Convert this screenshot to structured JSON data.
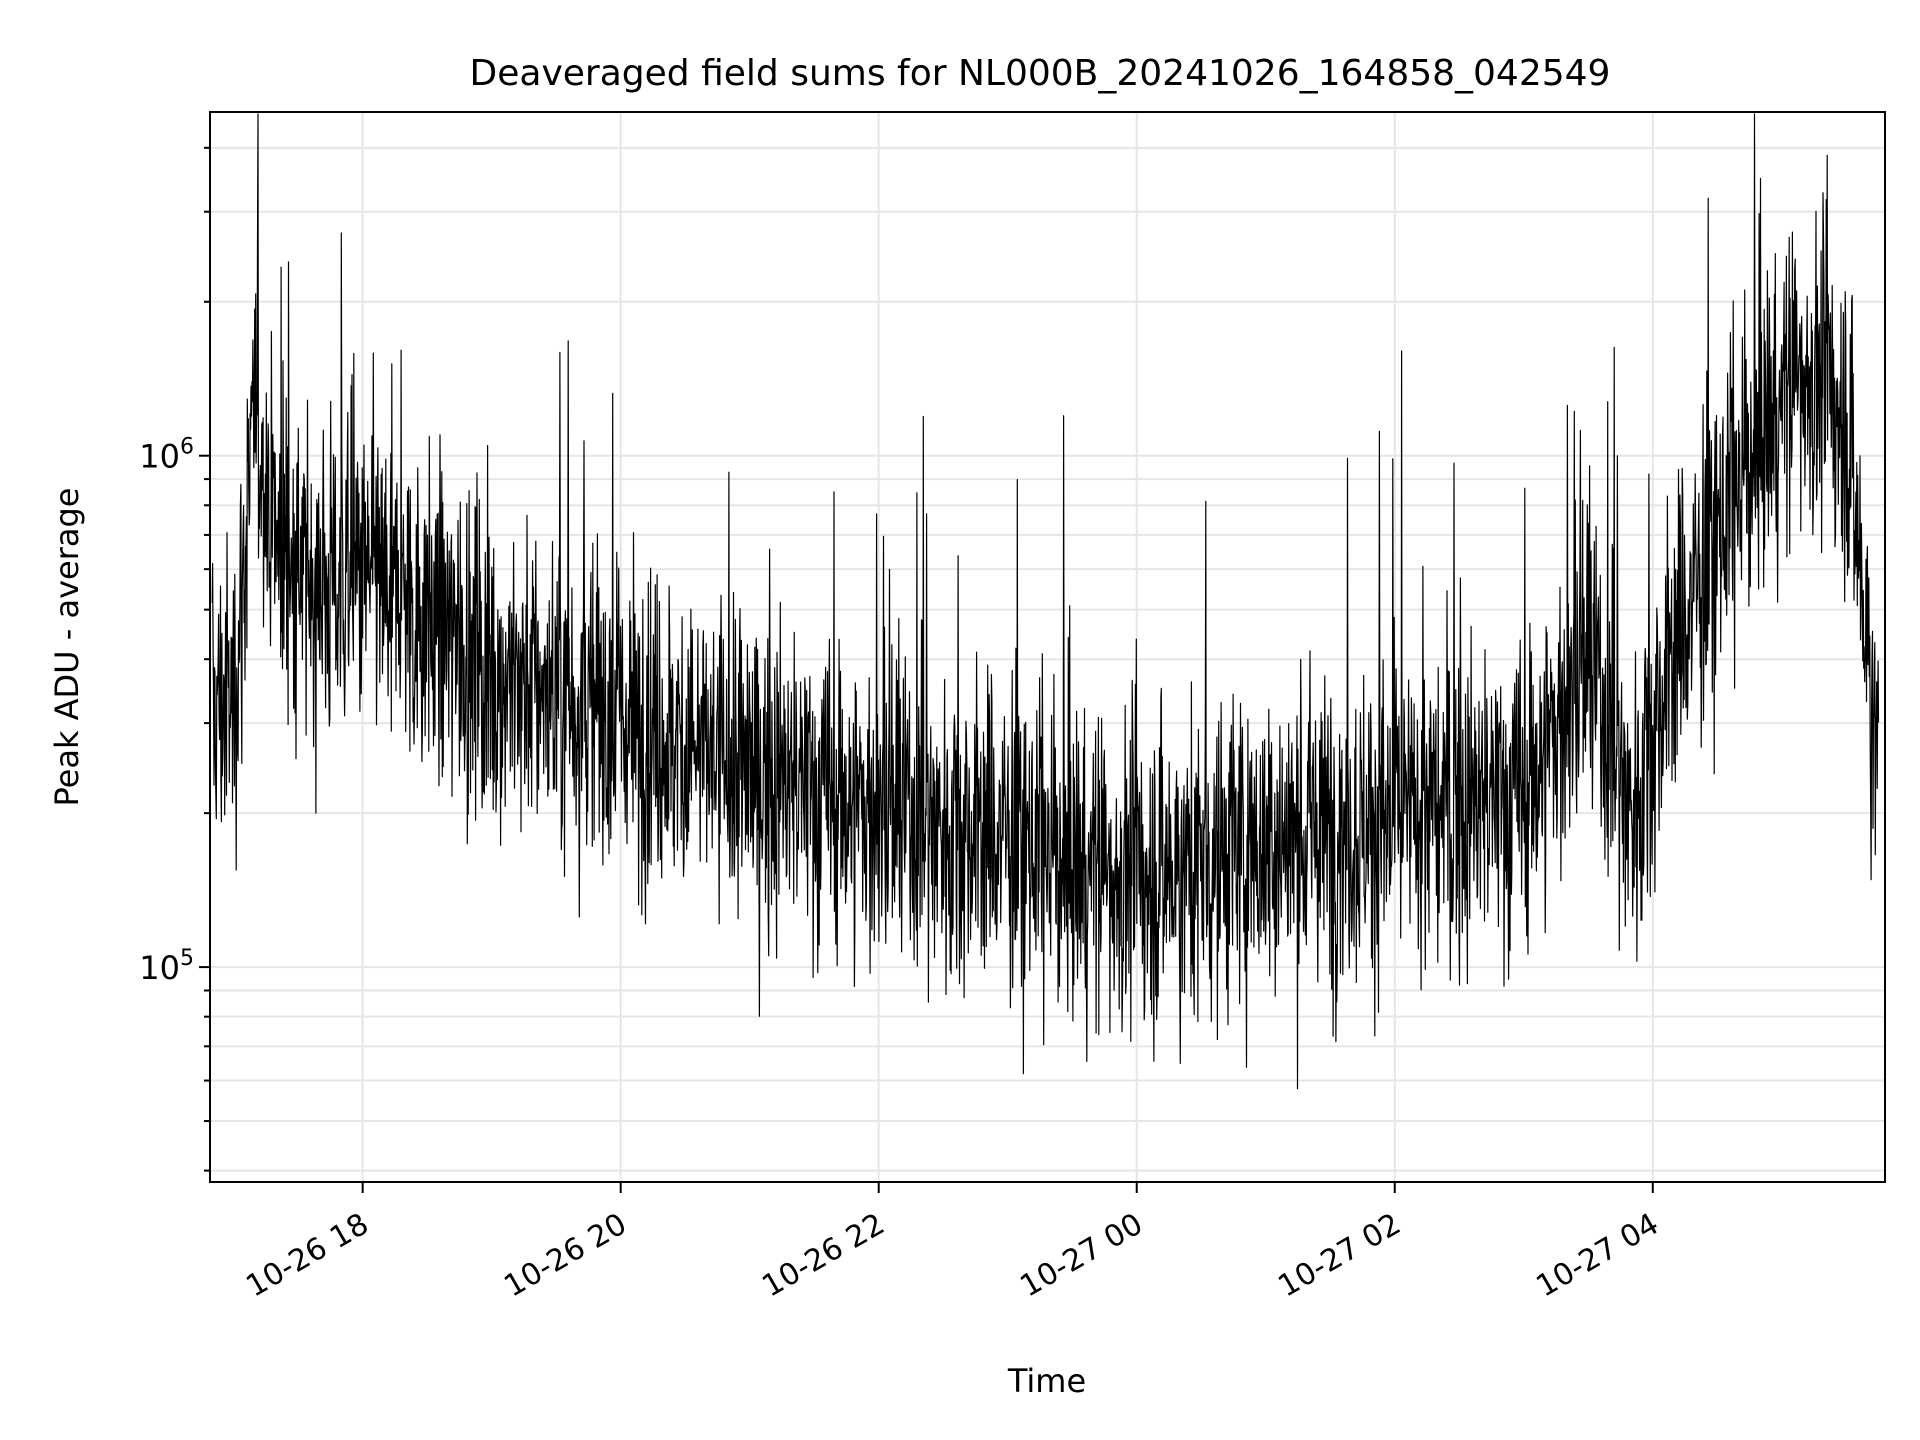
{
  "chart_data": {
    "type": "line",
    "title": "Deaveraged field sums for NL000B_20241026_164858_042549",
    "xlabel": "Time",
    "ylabel": "Peak ADU - average",
    "x_ticks": [
      "10-26 18",
      "10-26 20",
      "10-26 22",
      "10-27 00",
      "10-27 02",
      "10-27 04"
    ],
    "y_ticks": [
      {
        "base": "10",
        "exp": "5",
        "value": 100000
      },
      {
        "base": "10",
        "exp": "6",
        "value": 1000000
      }
    ],
    "y_scale": "log",
    "xlim": [
      "2024-10-26 16:49",
      "2024-10-27 05:48"
    ],
    "ylim": [
      38000,
      4700000
    ],
    "grid": true,
    "line_color": "#000000",
    "series": [
      {
        "x": [
          "2024-10-26 16:50",
          "2024-10-26 17:00",
          "2024-10-26 17:10",
          "2024-10-26 17:20",
          "2024-10-26 17:30",
          "2024-10-26 17:45",
          "2024-10-26 18:00",
          "2024-10-26 18:20",
          "2024-10-26 18:40",
          "2024-10-26 19:00",
          "2024-10-26 19:30",
          "2024-10-26 20:00",
          "2024-10-26 20:30",
          "2024-10-26 21:00",
          "2024-10-26 21:30",
          "2024-10-26 22:00",
          "2024-10-26 22:30",
          "2024-10-26 23:00",
          "2024-10-26 23:30",
          "2024-10-27 00:00",
          "2024-10-27 00:30",
          "2024-10-27 01:00",
          "2024-10-27 01:30",
          "2024-10-27 02:00",
          "2024-10-27 02:30",
          "2024-10-27 03:00",
          "2024-10-27 03:30",
          "2024-10-27 03:50",
          "2024-10-27 04:10",
          "2024-10-27 04:30",
          "2024-10-27 04:50",
          "2024-10-27 05:10",
          "2024-10-27 05:30",
          "2024-10-27 05:45"
        ],
        "y": [
          320000,
          330000,
          1200000,
          700000,
          580000,
          560000,
          580000,
          520000,
          450000,
          380000,
          340000,
          310000,
          270000,
          240000,
          220000,
          200000,
          190000,
          180000,
          160000,
          150000,
          160000,
          175000,
          185000,
          195000,
          205000,
          215000,
          400000,
          200000,
          420000,
          700000,
          1100000,
          1500000,
          1200000,
          250000
        ]
      }
    ]
  }
}
